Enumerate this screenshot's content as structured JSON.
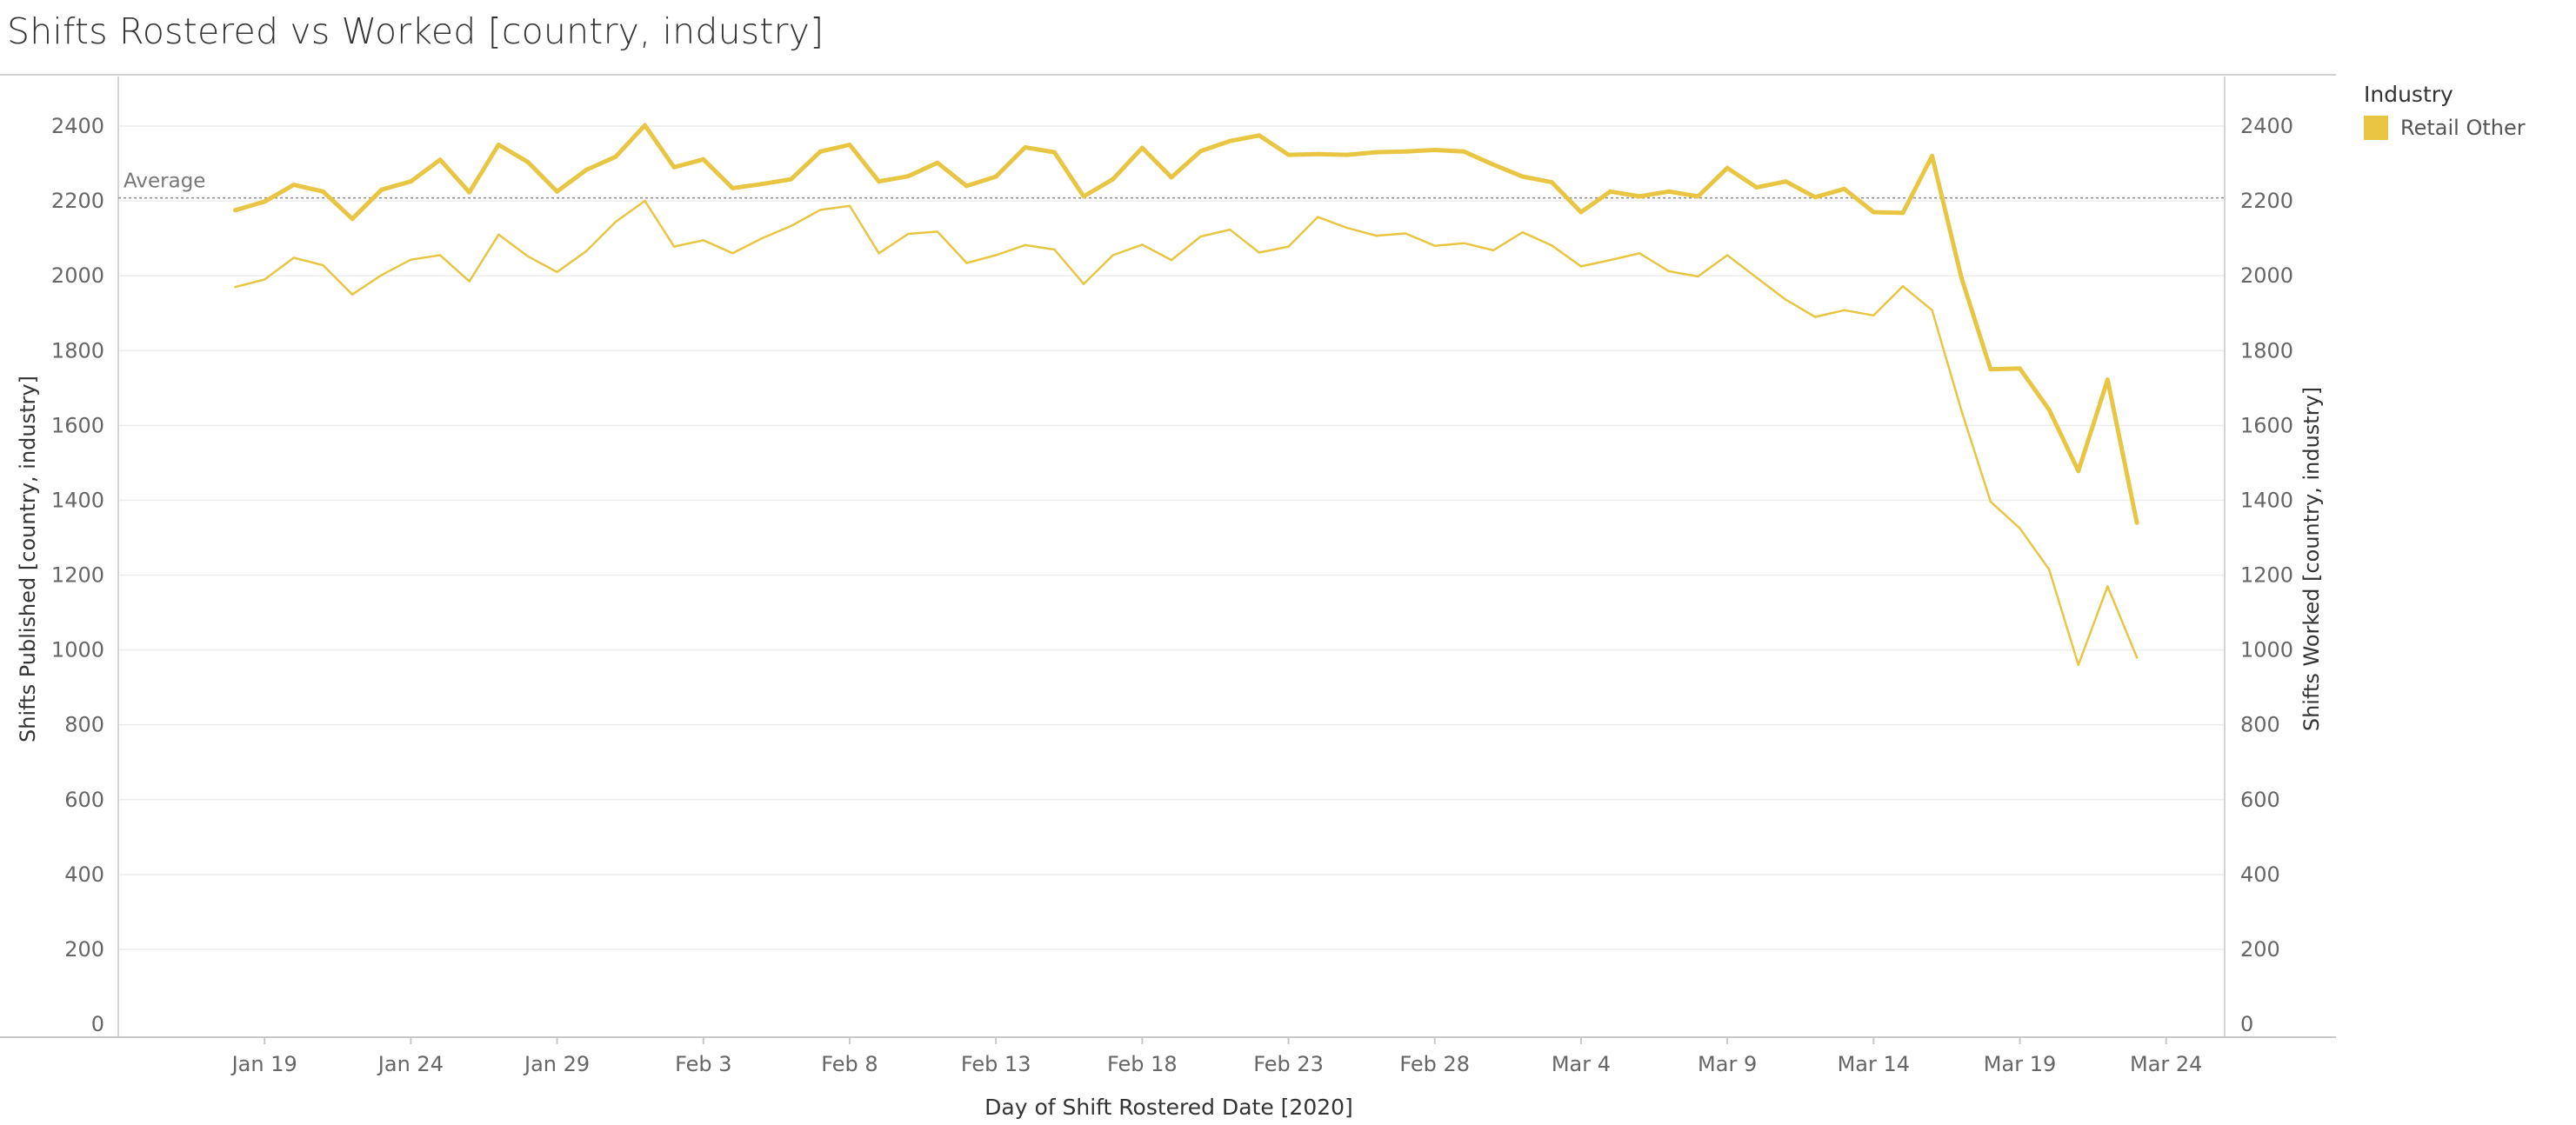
{
  "title": "Shifts Rostered vs Worked [country, industry]",
  "legend": {
    "title": "Industry",
    "items": [
      {
        "label": "Retail Other",
        "color": "#E8C643"
      }
    ]
  },
  "chart_data": {
    "type": "line",
    "title": "Shifts Rostered vs Worked [country, industry]",
    "xlabel": "Day of Shift Rostered Date [2020]",
    "ylabel_left": "Shifts Published [country, industry]",
    "ylabel_right": "Shifts Worked [country, industry]",
    "ylim": [
      0,
      2500
    ],
    "y_ticks": [
      0,
      200,
      400,
      600,
      800,
      1000,
      1200,
      1400,
      1600,
      1800,
      2000,
      2200,
      2400
    ],
    "x_ticks": [
      {
        "date": "2020-01-19",
        "label": "Jan 19"
      },
      {
        "date": "2020-01-24",
        "label": "Jan 24"
      },
      {
        "date": "2020-01-29",
        "label": "Jan 29"
      },
      {
        "date": "2020-02-03",
        "label": "Feb 3"
      },
      {
        "date": "2020-02-08",
        "label": "Feb 8"
      },
      {
        "date": "2020-02-13",
        "label": "Feb 13"
      },
      {
        "date": "2020-02-18",
        "label": "Feb 18"
      },
      {
        "date": "2020-02-23",
        "label": "Feb 23"
      },
      {
        "date": "2020-02-28",
        "label": "Feb 28"
      },
      {
        "date": "2020-03-04",
        "label": "Mar 4"
      },
      {
        "date": "2020-03-09",
        "label": "Mar 9"
      },
      {
        "date": "2020-03-14",
        "label": "Mar 14"
      },
      {
        "date": "2020-03-19",
        "label": "Mar 19"
      },
      {
        "date": "2020-03-24",
        "label": "Mar 24"
      }
    ],
    "x_range": [
      "2020-01-14",
      "2020-03-26"
    ],
    "reference_line": {
      "label": "Average",
      "value": 2208
    },
    "grid": true,
    "legend_position": "right",
    "color": "#E8C643",
    "x": [
      "2020-01-18",
      "2020-01-19",
      "2020-01-20",
      "2020-01-21",
      "2020-01-22",
      "2020-01-23",
      "2020-01-24",
      "2020-01-25",
      "2020-01-26",
      "2020-01-27",
      "2020-01-28",
      "2020-01-29",
      "2020-01-30",
      "2020-01-31",
      "2020-02-01",
      "2020-02-02",
      "2020-02-03",
      "2020-02-04",
      "2020-02-05",
      "2020-02-06",
      "2020-02-07",
      "2020-02-08",
      "2020-02-09",
      "2020-02-10",
      "2020-02-11",
      "2020-02-12",
      "2020-02-13",
      "2020-02-14",
      "2020-02-15",
      "2020-02-16",
      "2020-02-17",
      "2020-02-18",
      "2020-02-19",
      "2020-02-20",
      "2020-02-21",
      "2020-02-22",
      "2020-02-23",
      "2020-02-24",
      "2020-02-25",
      "2020-02-26",
      "2020-02-27",
      "2020-02-28",
      "2020-02-29",
      "2020-03-01",
      "2020-03-02",
      "2020-03-03",
      "2020-03-04",
      "2020-03-05",
      "2020-03-06",
      "2020-03-07",
      "2020-03-08",
      "2020-03-09",
      "2020-03-10",
      "2020-03-11",
      "2020-03-12",
      "2020-03-13",
      "2020-03-14",
      "2020-03-15",
      "2020-03-16",
      "2020-03-17",
      "2020-03-18",
      "2020-03-19",
      "2020-03-20",
      "2020-03-21",
      "2020-03-22",
      "2020-03-23"
    ],
    "series": [
      {
        "name": "Shifts Published",
        "stroke": "thick",
        "values": [
          2175,
          2198,
          2243,
          2225,
          2152,
          2230,
          2252,
          2310,
          2223,
          2350,
          2304,
          2225,
          2283,
          2318,
          2402,
          2290,
          2311,
          2234,
          2245,
          2258,
          2332,
          2350,
          2252,
          2266,
          2302,
          2240,
          2265,
          2343,
          2330,
          2212,
          2258,
          2342,
          2263,
          2333,
          2360,
          2375,
          2323,
          2325,
          2323,
          2330,
          2332,
          2336,
          2332,
          2297,
          2265,
          2250,
          2170,
          2225,
          2212,
          2225,
          2212,
          2288,
          2236,
          2252,
          2210,
          2232,
          2170,
          2168,
          2320,
          1995,
          1750,
          1752,
          1642,
          1478,
          1722,
          1340
        ]
      },
      {
        "name": "Shifts Worked",
        "stroke": "thin",
        "values": [
          1970,
          1990,
          2048,
          2028,
          1950,
          2002,
          2043,
          2055,
          1985,
          2110,
          2052,
          2010,
          2066,
          2144,
          2200,
          2078,
          2095,
          2060,
          2100,
          2133,
          2176,
          2187,
          2060,
          2112,
          2118,
          2034,
          2055,
          2082,
          2070,
          1978,
          2055,
          2083,
          2042,
          2105,
          2123,
          2062,
          2078,
          2157,
          2128,
          2107,
          2113,
          2080,
          2087,
          2068,
          2116,
          2081,
          2025,
          2042,
          2060,
          2012,
          1998,
          2055,
          1995,
          1936,
          1890,
          1908,
          1894,
          1972,
          1908,
          1640,
          1396,
          1325,
          1215,
          960,
          1170,
          980
        ]
      }
    ]
  }
}
